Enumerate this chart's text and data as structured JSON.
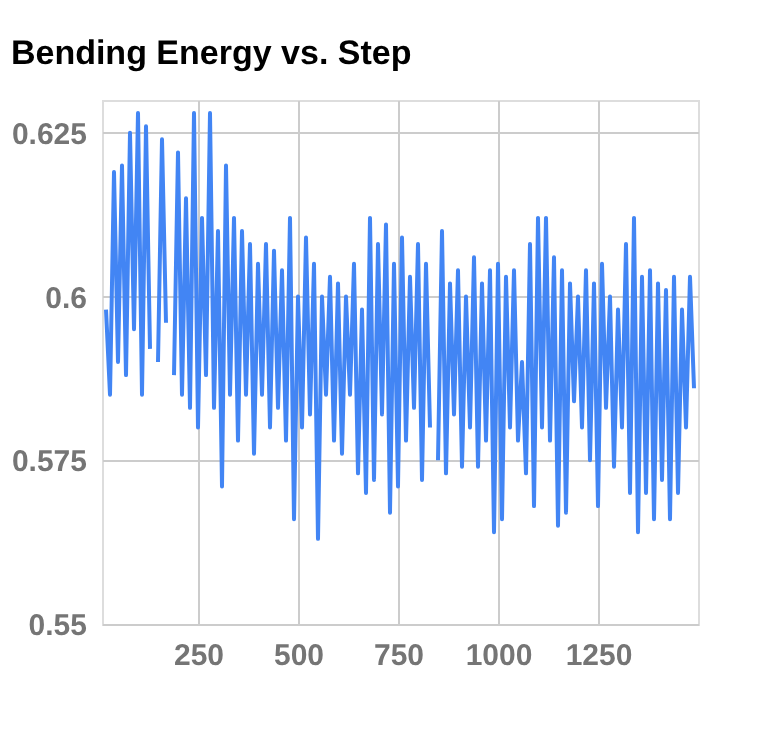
{
  "chart_data": {
    "type": "line",
    "title": "Bending Energy vs. Step",
    "x": [
      20,
      30,
      40,
      50,
      60,
      70,
      80,
      90,
      100,
      110,
      120,
      130,
      140,
      150,
      160,
      170,
      180,
      190,
      200,
      210,
      220,
      230,
      240,
      250,
      260,
      270,
      280,
      290,
      300,
      310,
      320,
      330,
      340,
      350,
      360,
      370,
      380,
      390,
      400,
      410,
      420,
      430,
      440,
      450,
      460,
      470,
      480,
      490,
      500,
      510,
      520,
      530,
      540,
      550,
      560,
      570,
      580,
      590,
      600,
      610,
      620,
      630,
      640,
      650,
      660,
      670,
      680,
      690,
      700,
      710,
      720,
      730,
      740,
      750,
      760,
      770,
      780,
      790,
      800,
      810,
      820,
      830,
      840,
      850,
      860,
      870,
      880,
      890,
      900,
      910,
      920,
      930,
      940,
      950,
      960,
      970,
      980,
      990,
      1000,
      1010,
      1020,
      1030,
      1040,
      1050,
      1060,
      1070,
      1080,
      1090,
      1100,
      1110,
      1120,
      1130,
      1140,
      1150,
      1160,
      1170,
      1180,
      1190,
      1200,
      1210,
      1220,
      1230,
      1240,
      1250,
      1260,
      1270,
      1280,
      1290,
      1300,
      1310,
      1320,
      1330,
      1340,
      1350,
      1360,
      1370,
      1380,
      1390,
      1400,
      1410,
      1420,
      1430,
      1440,
      1450,
      1460,
      1470,
      1480,
      1490
    ],
    "series": [
      {
        "color": "#4285f4",
        "values": [
          0.598,
          0.585,
          0.619,
          0.59,
          0.62,
          0.588,
          0.625,
          0.595,
          0.628,
          0.585,
          0.626,
          0.592,
          null,
          0.59,
          0.624,
          0.596,
          null,
          0.588,
          0.622,
          0.585,
          0.615,
          0.583,
          0.628,
          0.58,
          0.612,
          0.588,
          0.628,
          0.583,
          0.61,
          0.571,
          0.62,
          0.585,
          0.612,
          0.578,
          0.61,
          0.585,
          0.608,
          0.576,
          0.605,
          0.585,
          0.608,
          0.58,
          0.607,
          0.583,
          0.604,
          0.578,
          0.612,
          0.566,
          0.6,
          0.58,
          0.609,
          0.582,
          0.605,
          0.563,
          0.6,
          0.585,
          0.603,
          0.578,
          0.602,
          0.576,
          0.6,
          0.585,
          0.605,
          0.573,
          0.598,
          0.57,
          0.612,
          0.572,
          0.608,
          0.582,
          0.611,
          0.567,
          0.605,
          0.571,
          0.609,
          0.578,
          0.603,
          0.583,
          0.608,
          0.572,
          0.605,
          0.58,
          null,
          0.575,
          0.61,
          0.573,
          0.602,
          0.582,
          0.604,
          0.574,
          0.6,
          0.58,
          0.606,
          0.574,
          0.602,
          0.578,
          0.604,
          0.564,
          0.605,
          0.566,
          0.603,
          0.58,
          0.604,
          0.578,
          0.59,
          0.573,
          0.608,
          0.568,
          0.612,
          0.58,
          0.612,
          0.578,
          0.606,
          0.565,
          0.604,
          0.567,
          0.602,
          0.584,
          0.6,
          0.58,
          0.604,
          0.575,
          0.602,
          0.568,
          0.605,
          0.583,
          0.6,
          0.574,
          0.598,
          0.58,
          0.608,
          0.57,
          0.612,
          0.564,
          0.603,
          0.57,
          0.604,
          0.566,
          0.602,
          0.572,
          0.601,
          0.566,
          0.603,
          0.57,
          0.598,
          0.58,
          0.603,
          0.586
        ]
      }
    ],
    "xlim": [
      10,
      1500
    ],
    "xticks": [
      250,
      500,
      750,
      1000,
      1250
    ],
    "ylim": [
      0.55,
      0.63
    ],
    "yticks": [
      0.55,
      0.575,
      0.6,
      0.625
    ],
    "grid": true
  }
}
